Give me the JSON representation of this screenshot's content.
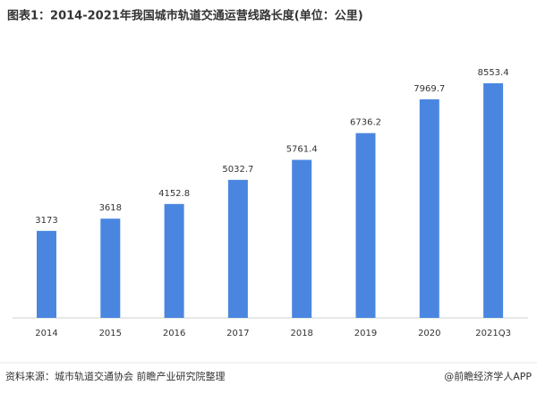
{
  "chart_data": {
    "type": "bar",
    "title": "图表1：2014-2021年我国城市轨道交通运营线路长度(单位：公里)",
    "categories": [
      "2014",
      "2015",
      "2016",
      "2017",
      "2018",
      "2019",
      "2020",
      "2021Q3"
    ],
    "values": [
      3173,
      3618,
      4152.8,
      5032.7,
      5761.4,
      6736.2,
      7969.7,
      8553.4
    ],
    "color": "#4a86e0"
  },
  "footer": {
    "source": "资料来源：城市轨道交通协会 前瞻产业研究院整理",
    "credit": "@前瞻经济学人APP"
  }
}
